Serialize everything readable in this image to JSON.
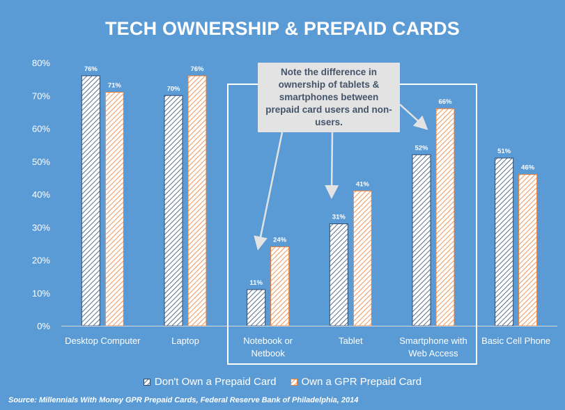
{
  "chart_data": {
    "type": "bar",
    "title": "TECH OWNERSHIP & PREPAID CARDS",
    "categories": [
      "Desktop Computer",
      "Laptop",
      "Notebook or Netbook",
      "Tablet",
      "Smartphone with Web Access",
      "Basic Cell Phone"
    ],
    "category_lines": [
      [
        "Desktop Computer"
      ],
      [
        "Laptop"
      ],
      [
        "Notebook or",
        "Netbook"
      ],
      [
        "Tablet"
      ],
      [
        "Smartphone with",
        "Web Access"
      ],
      [
        "Basic Cell Phone"
      ]
    ],
    "series": [
      {
        "name": "Don't Own a Prepaid Card",
        "values": [
          76,
          70,
          11,
          31,
          52,
          51
        ],
        "value_labels": [
          "76%",
          "70%",
          "11%",
          "31%",
          "52%",
          "51%"
        ],
        "color": "#ffffff",
        "hatch": "#2e4a6e"
      },
      {
        "name": "Own a GPR Prepaid Card",
        "values": [
          71,
          76,
          24,
          41,
          66,
          46
        ],
        "value_labels": [
          "71%",
          "76%",
          "24%",
          "41%",
          "66%",
          "46%"
        ],
        "color": "#ffffff",
        "hatch": "#ed7d31"
      }
    ],
    "ylim": [
      0,
      80
    ],
    "yticks": [
      "0%",
      "10%",
      "20%",
      "30%",
      "40%",
      "50%",
      "60%",
      "70%",
      "80%"
    ],
    "xlabel": "",
    "ylabel": "",
    "grid": false,
    "legend_position": "bottom",
    "highlight_categories": [
      "Notebook or Netbook",
      "Tablet",
      "Smartphone with Web Access"
    ]
  },
  "annotation": {
    "text": "Note the difference in ownership of tablets & smartphones between prepaid card users and non-users.",
    "lines": [
      "Note the difference in",
      "ownership of tablets &",
      "smartphones between",
      "prepaid card users and non-",
      "users."
    ]
  },
  "source": "Source: Millennials With Money GPR Prepaid Cards, Federal Reserve Bank of Philadelphia, 2014",
  "colors": {
    "background": "#5b9bd5",
    "callout_bg": "#e3e3e3",
    "callout_text": "#44546a"
  }
}
